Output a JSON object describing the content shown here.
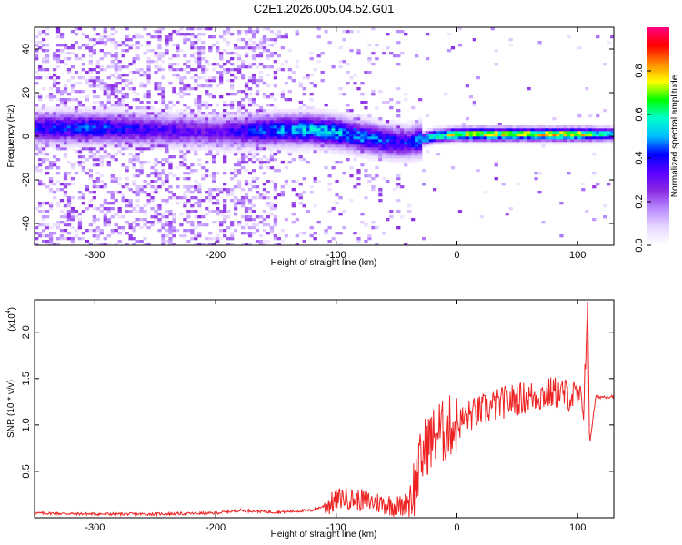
{
  "title": "C2E1.2026.005.04.52.G01",
  "colors": {
    "snr_line": "#ee2222",
    "axis": "#000000",
    "colormap": [
      "#ffffff",
      "#e8d8ff",
      "#b98cff",
      "#8a2be2",
      "#5a00ff",
      "#0000ff",
      "#00bfff",
      "#00ffcc",
      "#00ff00",
      "#ffff00",
      "#ff8800",
      "#ff0000",
      "#ff0080"
    ]
  },
  "chart_data": [
    {
      "type": "heatmap",
      "xlabel": "Height of straight line (km)",
      "ylabel": "Frequency (Hz)",
      "xlim": [
        -350,
        130
      ],
      "ylim": [
        -50,
        50
      ],
      "x_ticks": [
        "-300",
        "-200",
        "-100",
        "0",
        "100"
      ],
      "x_tick_values": [
        -300,
        -200,
        -100,
        0,
        100
      ],
      "y_ticks": [
        "-40",
        "-20",
        "0",
        "20",
        "40"
      ],
      "y_tick_values": [
        -40,
        -20,
        0,
        20,
        40
      ],
      "ridge": {
        "description_points_x": [
          -350,
          -300,
          -250,
          -200,
          -150,
          -120,
          -100,
          -80,
          -60,
          -40,
          -20,
          0,
          50,
          100,
          130
        ],
        "center_freq": [
          4,
          4,
          3,
          2,
          3,
          3,
          2,
          0,
          -2,
          -3,
          0,
          1,
          1,
          1,
          1
        ],
        "peak_amplitude": [
          0.45,
          0.5,
          0.4,
          0.35,
          0.55,
          0.6,
          0.6,
          0.55,
          0.5,
          0.45,
          0.7,
          0.85,
          0.85,
          0.9,
          0.6
        ]
      },
      "colorbar": {
        "label": "Normalized spectral amplitude",
        "range": [
          0,
          1
        ],
        "ticks": [
          "0.0",
          "0.2",
          "0.4",
          "0.6",
          "0.8"
        ],
        "tick_values": [
          0.0,
          0.2,
          0.4,
          0.6,
          0.8
        ]
      }
    },
    {
      "type": "line",
      "series": [
        {
          "x": [
            -350,
            -300,
            -250,
            -200,
            -180,
            -150,
            -120,
            -105,
            -95,
            -85,
            -75,
            -65,
            -55,
            -45,
            -40,
            -35,
            -30,
            -25,
            -20,
            -15,
            -10,
            -5,
            0,
            10,
            20,
            30,
            40,
            50,
            60,
            70,
            80,
            90,
            100,
            105,
            108,
            110,
            115,
            130
          ],
          "y": [
            0.05,
            0.04,
            0.04,
            0.05,
            0.08,
            0.06,
            0.08,
            0.15,
            0.22,
            0.2,
            0.18,
            0.16,
            0.14,
            0.12,
            0.2,
            0.35,
            0.6,
            0.8,
            0.85,
            0.95,
            0.9,
            1.0,
            1.0,
            1.1,
            1.15,
            1.2,
            1.25,
            1.28,
            1.3,
            1.32,
            1.35,
            1.33,
            1.3,
            1.2,
            2.3,
            0.8,
            1.3,
            1.31
          ]
        }
      ],
      "xlabel": "Height of straight line (km)",
      "ylabel": "SNR (10 * v/v)",
      "multiplier": "(x10",
      "multiplier_exp": "4",
      "xlim": [
        -350,
        130
      ],
      "ylim": [
        0,
        2.35
      ],
      "x_ticks": [
        "-300",
        "-200",
        "-100",
        "0",
        "100"
      ],
      "x_tick_values": [
        -300,
        -200,
        -100,
        0,
        100
      ],
      "y_ticks": [
        "0.5",
        "1.0",
        "1.5",
        "2.0"
      ],
      "y_tick_values": [
        0.5,
        1.0,
        1.5,
        2.0
      ]
    }
  ]
}
